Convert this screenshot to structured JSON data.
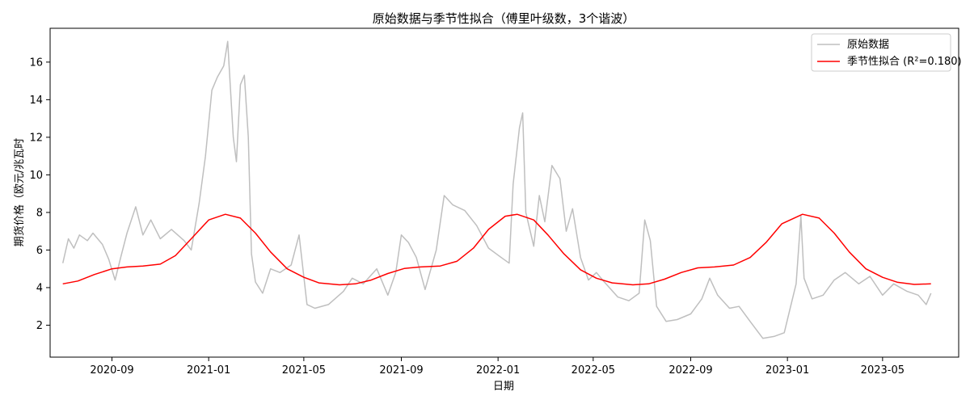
{
  "chart_data": {
    "type": "line",
    "title": "原始数据与季节性拟合（傅里叶级数，3个谐波）",
    "xlabel": "日期",
    "ylabel": "期货价格（欧元/兆瓦时",
    "x_ticks": [
      "2020-09",
      "2021-01",
      "2021-05",
      "2021-09",
      "2022-01",
      "2022-05",
      "2022-09",
      "2023-01",
      "2023-05"
    ],
    "x_range": [
      "2020-06-15",
      "2023-08-05"
    ],
    "y_ticks": [
      2,
      4,
      6,
      8,
      10,
      12,
      14,
      16
    ],
    "ylim": [
      0.3,
      17.8
    ],
    "grid": false,
    "legend_position": "top-right",
    "series": [
      {
        "name": "原始数据",
        "color": "#bfbfbf",
        "points": [
          [
            "2020-07-01",
            5.3
          ],
          [
            "2020-07-08",
            6.6
          ],
          [
            "2020-07-15",
            6.1
          ],
          [
            "2020-07-22",
            6.8
          ],
          [
            "2020-08-01",
            6.5
          ],
          [
            "2020-08-08",
            6.9
          ],
          [
            "2020-08-20",
            6.3
          ],
          [
            "2020-08-28",
            5.5
          ],
          [
            "2020-09-05",
            4.4
          ],
          [
            "2020-09-12",
            5.6
          ],
          [
            "2020-09-20",
            6.9
          ],
          [
            "2020-10-01",
            8.3
          ],
          [
            "2020-10-10",
            6.8
          ],
          [
            "2020-10-20",
            7.6
          ],
          [
            "2020-11-01",
            6.6
          ],
          [
            "2020-11-15",
            7.1
          ],
          [
            "2020-12-01",
            6.5
          ],
          [
            "2020-12-10",
            6.0
          ],
          [
            "2020-12-20",
            8.5
          ],
          [
            "2020-12-28",
            11.0
          ],
          [
            "2021-01-05",
            14.5
          ],
          [
            "2021-01-12",
            15.2
          ],
          [
            "2021-01-20",
            15.8
          ],
          [
            "2021-01-25",
            17.1
          ],
          [
            "2021-02-01",
            12.0
          ],
          [
            "2021-02-05",
            10.7
          ],
          [
            "2021-02-10",
            14.8
          ],
          [
            "2021-02-15",
            15.3
          ],
          [
            "2021-02-20",
            12.0
          ],
          [
            "2021-02-24",
            5.8
          ],
          [
            "2021-03-01",
            4.3
          ],
          [
            "2021-03-10",
            3.7
          ],
          [
            "2021-03-20",
            5.0
          ],
          [
            "2021-04-01",
            4.8
          ],
          [
            "2021-04-15",
            5.2
          ],
          [
            "2021-04-25",
            6.8
          ],
          [
            "2021-05-05",
            3.1
          ],
          [
            "2021-05-15",
            2.9
          ],
          [
            "2021-06-01",
            3.1
          ],
          [
            "2021-06-20",
            3.8
          ],
          [
            "2021-07-01",
            4.5
          ],
          [
            "2021-07-15",
            4.2
          ],
          [
            "2021-08-01",
            5.0
          ],
          [
            "2021-08-15",
            3.6
          ],
          [
            "2021-08-25",
            4.8
          ],
          [
            "2021-09-01",
            6.8
          ],
          [
            "2021-09-10",
            6.4
          ],
          [
            "2021-09-20",
            5.6
          ],
          [
            "2021-10-01",
            3.9
          ],
          [
            "2021-10-15",
            6.0
          ],
          [
            "2021-10-25",
            8.9
          ],
          [
            "2021-11-05",
            8.4
          ],
          [
            "2021-11-20",
            8.1
          ],
          [
            "2021-12-05",
            7.3
          ],
          [
            "2021-12-20",
            6.1
          ],
          [
            "2022-01-05",
            5.6
          ],
          [
            "2022-01-15",
            5.3
          ],
          [
            "2022-01-20",
            9.5
          ],
          [
            "2022-01-28",
            12.5
          ],
          [
            "2022-02-01",
            13.3
          ],
          [
            "2022-02-05",
            8.0
          ],
          [
            "2022-02-15",
            6.2
          ],
          [
            "2022-02-22",
            8.9
          ],
          [
            "2022-03-01",
            7.5
          ],
          [
            "2022-03-10",
            10.5
          ],
          [
            "2022-03-20",
            9.8
          ],
          [
            "2022-03-28",
            7.0
          ],
          [
            "2022-04-05",
            8.2
          ],
          [
            "2022-04-15",
            5.6
          ],
          [
            "2022-04-25",
            4.4
          ],
          [
            "2022-05-05",
            4.8
          ],
          [
            "2022-05-15",
            4.3
          ],
          [
            "2022-06-01",
            3.5
          ],
          [
            "2022-06-15",
            3.3
          ],
          [
            "2022-06-28",
            3.7
          ],
          [
            "2022-07-05",
            7.6
          ],
          [
            "2022-07-12",
            6.5
          ],
          [
            "2022-07-20",
            3.0
          ],
          [
            "2022-08-01",
            2.2
          ],
          [
            "2022-08-15",
            2.3
          ],
          [
            "2022-09-01",
            2.6
          ],
          [
            "2022-09-15",
            3.4
          ],
          [
            "2022-09-25",
            4.5
          ],
          [
            "2022-10-05",
            3.6
          ],
          [
            "2022-10-20",
            2.9
          ],
          [
            "2022-11-01",
            3.0
          ],
          [
            "2022-11-15",
            2.2
          ],
          [
            "2022-12-01",
            1.3
          ],
          [
            "2022-12-15",
            1.4
          ],
          [
            "2022-12-28",
            1.6
          ],
          [
            "2023-01-05",
            3.0
          ],
          [
            "2023-01-12",
            4.2
          ],
          [
            "2023-01-18",
            7.8
          ],
          [
            "2023-01-22",
            4.5
          ],
          [
            "2023-02-01",
            3.4
          ],
          [
            "2023-02-15",
            3.6
          ],
          [
            "2023-03-01",
            4.4
          ],
          [
            "2023-03-15",
            4.8
          ],
          [
            "2023-04-01",
            4.2
          ],
          [
            "2023-04-15",
            4.6
          ],
          [
            "2023-05-01",
            3.6
          ],
          [
            "2023-05-15",
            4.2
          ],
          [
            "2023-06-01",
            3.8
          ],
          [
            "2023-06-15",
            3.6
          ],
          [
            "2023-06-25",
            3.1
          ],
          [
            "2023-07-01",
            3.7
          ]
        ]
      },
      {
        "name": "季节性拟合 (R²=0.180)",
        "color": "#ff0000",
        "points": [
          [
            "2020-07-01",
            4.2
          ],
          [
            "2020-07-20",
            4.35
          ],
          [
            "2020-08-10",
            4.7
          ],
          [
            "2020-09-01",
            5.0
          ],
          [
            "2020-09-20",
            5.1
          ],
          [
            "2020-10-10",
            5.15
          ],
          [
            "2020-11-01",
            5.25
          ],
          [
            "2020-11-20",
            5.7
          ],
          [
            "2020-12-10",
            6.6
          ],
          [
            "2021-01-01",
            7.6
          ],
          [
            "2021-01-22",
            7.9
          ],
          [
            "2021-02-10",
            7.7
          ],
          [
            "2021-03-01",
            6.9
          ],
          [
            "2021-03-20",
            5.9
          ],
          [
            "2021-04-10",
            5.0
          ],
          [
            "2021-05-01",
            4.55
          ],
          [
            "2021-05-20",
            4.25
          ],
          [
            "2021-06-15",
            4.15
          ],
          [
            "2021-07-05",
            4.2
          ],
          [
            "2021-07-25",
            4.4
          ],
          [
            "2021-08-15",
            4.75
          ],
          [
            "2021-09-05",
            5.02
          ],
          [
            "2021-09-25",
            5.1
          ],
          [
            "2021-10-20",
            5.15
          ],
          [
            "2021-11-10",
            5.4
          ],
          [
            "2021-12-01",
            6.1
          ],
          [
            "2021-12-20",
            7.1
          ],
          [
            "2022-01-10",
            7.8
          ],
          [
            "2022-01-25",
            7.9
          ],
          [
            "2022-02-15",
            7.6
          ],
          [
            "2022-03-05",
            6.8
          ],
          [
            "2022-03-25",
            5.8
          ],
          [
            "2022-04-15",
            4.95
          ],
          [
            "2022-05-05",
            4.5
          ],
          [
            "2022-05-25",
            4.25
          ],
          [
            "2022-06-20",
            4.15
          ],
          [
            "2022-07-10",
            4.2
          ],
          [
            "2022-07-30",
            4.45
          ],
          [
            "2022-08-20",
            4.8
          ],
          [
            "2022-09-10",
            5.05
          ],
          [
            "2022-10-01",
            5.1
          ],
          [
            "2022-10-25",
            5.2
          ],
          [
            "2022-11-15",
            5.6
          ],
          [
            "2022-12-05",
            6.4
          ],
          [
            "2022-12-25",
            7.4
          ],
          [
            "2023-01-20",
            7.9
          ],
          [
            "2023-02-10",
            7.7
          ],
          [
            "2023-03-01",
            6.9
          ],
          [
            "2023-03-20",
            5.9
          ],
          [
            "2023-04-10",
            5.0
          ],
          [
            "2023-05-01",
            4.55
          ],
          [
            "2023-05-20",
            4.28
          ],
          [
            "2023-06-10",
            4.17
          ],
          [
            "2023-07-01",
            4.2
          ]
        ]
      }
    ]
  }
}
